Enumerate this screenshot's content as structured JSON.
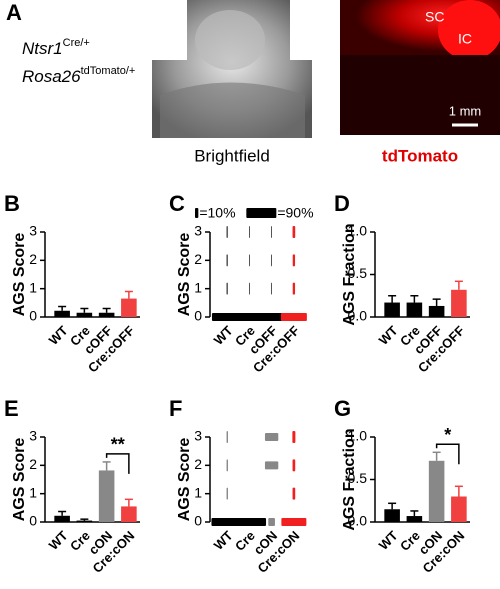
{
  "panel_a": {
    "letter": "A",
    "genotype_1": "Ntsr1",
    "genotype_1_sup": "Cre/+",
    "genotype_2": "Rosa26",
    "genotype_2_sup": "tdTomato/+",
    "image_1_label": "Brightfield",
    "image_2_label": "tdTomato",
    "region_1": "SC",
    "region_2": "IC",
    "scale_bar": "1 mm"
  },
  "chart_data": [
    {
      "type": "bar",
      "letter": "B",
      "ylabel": "AGS Score",
      "categories": [
        "WT",
        "Cre",
        "cOFF",
        "Cre:cOFF"
      ],
      "values": [
        0.22,
        0.15,
        0.15,
        0.65
      ],
      "errors": [
        0.15,
        0.15,
        0.15,
        0.25
      ],
      "colors": [
        "#000000",
        "#000000",
        "#000000",
        "#f04040"
      ],
      "ylim": [
        0,
        3
      ],
      "yticks": [
        0,
        1,
        2,
        3
      ]
    },
    {
      "type": "proportion",
      "letter": "C",
      "ylabel": "AGS Score",
      "categories": [
        "WT",
        "Cre",
        "cOFF",
        "Cre:cOFF"
      ],
      "scores": [
        0,
        1,
        2,
        3
      ],
      "values": [
        [
          91,
          3,
          3,
          3
        ],
        [
          94,
          2,
          2,
          2
        ],
        [
          94,
          2,
          2,
          2
        ],
        [
          78,
          7,
          7,
          8
        ]
      ],
      "colors": [
        "#000000",
        "#000000",
        "#000000",
        "#f02020"
      ],
      "legend_keys": [
        {
          "value": 10,
          "label": "=10%"
        },
        {
          "value": 90,
          "label": "=90%"
        }
      ],
      "ylim": [
        0,
        3
      ],
      "yticks": [
        0,
        1,
        2,
        3
      ]
    },
    {
      "type": "bar",
      "letter": "D",
      "ylabel": "AGS Fraction",
      "categories": [
        "WT",
        "Cre",
        "cOFF",
        "Cre:cOFF"
      ],
      "values": [
        0.17,
        0.17,
        0.13,
        0.32
      ],
      "errors": [
        0.08,
        0.08,
        0.08,
        0.1
      ],
      "colors": [
        "#000000",
        "#000000",
        "#000000",
        "#f04040"
      ],
      "ylim": [
        0,
        1
      ],
      "yticks": [
        {
          "value": 0,
          "label": "0.0"
        },
        {
          "value": 0.5,
          "label": "0.5"
        },
        {
          "value": 1,
          "label": "1.0"
        }
      ]
    },
    {
      "type": "bar",
      "letter": "E",
      "ylabel": "AGS Score",
      "categories": [
        "WT",
        "Cre",
        "cON",
        "Cre:cON"
      ],
      "values": [
        0.22,
        0.05,
        1.82,
        0.55
      ],
      "errors": [
        0.15,
        0.05,
        0.3,
        0.25
      ],
      "colors": [
        "#000000",
        "#000000",
        "#888888",
        "#f04040"
      ],
      "significance": "**",
      "ylim": [
        0,
        3
      ],
      "yticks": [
        0,
        1,
        2,
        3
      ]
    },
    {
      "type": "proportion",
      "letter": "F",
      "ylabel": "AGS Score",
      "categories": [
        "WT",
        "Cre",
        "cON",
        "Cre:cON"
      ],
      "scores": [
        0,
        1,
        2,
        3
      ],
      "values": [
        [
          94,
          2,
          2,
          2
        ],
        [
          100,
          0,
          0,
          0
        ],
        [
          20,
          0,
          40,
          40
        ],
        [
          75,
          8,
          8,
          9
        ]
      ],
      "colors": [
        "#000000",
        "#000000",
        "#888888",
        "#f02020"
      ],
      "ylim": [
        0,
        3
      ],
      "yticks": [
        0,
        1,
        2,
        3
      ]
    },
    {
      "type": "bar",
      "letter": "G",
      "ylabel": "AGS  Fraction",
      "categories": [
        "WT",
        "Cre",
        "cON",
        "Cre:cON"
      ],
      "values": [
        0.15,
        0.07,
        0.72,
        0.3
      ],
      "errors": [
        0.07,
        0.06,
        0.1,
        0.12
      ],
      "colors": [
        "#000000",
        "#000000",
        "#888888",
        "#f04040"
      ],
      "significance": "*",
      "ylim": [
        0,
        1
      ],
      "yticks": [
        {
          "value": 0,
          "label": "0.0"
        },
        {
          "value": 0.5,
          "label": "0.5"
        },
        {
          "value": 1,
          "label": "1.0"
        }
      ]
    }
  ]
}
